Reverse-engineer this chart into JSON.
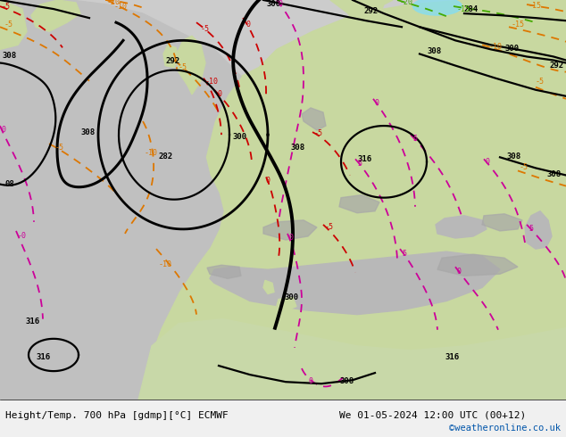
{
  "title_left": "Height/Temp. 700 hPa [gdmp][°C] ECMWF",
  "title_right": "We 01-05-2024 12:00 UTC (00+12)",
  "credit": "©weatheronline.co.uk",
  "fig_width": 6.34,
  "fig_height": 4.9,
  "dpi": 100,
  "bg_color": "#ffffff",
  "credit_color": "#0055aa",
  "title_font_size": 8.0,
  "credit_font_size": 7.5
}
